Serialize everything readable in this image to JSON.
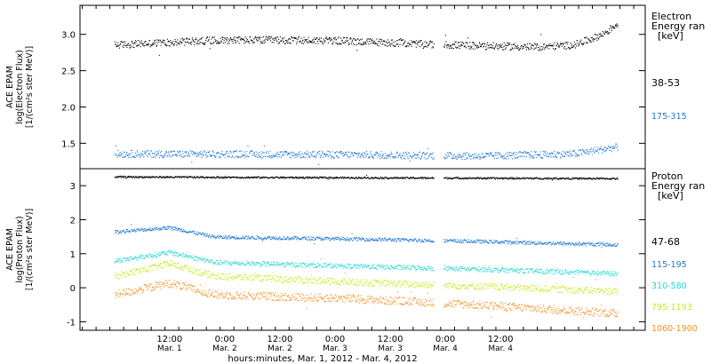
{
  "chart_data": [
    {
      "type": "scatter",
      "panel": "electron",
      "ylabel": [
        "ACE EPAM",
        "log(Electron Flux)",
        "[1/(cm²s ster MeV)]"
      ],
      "ylim": [
        1.15,
        3.4
      ],
      "yticks": [
        1.5,
        2.0,
        2.5,
        3.0
      ],
      "ytick_labels": [
        "1.5",
        "2.0",
        "2.5",
        "3.0"
      ],
      "legend_title": [
        "Electron",
        "Energy ran",
        "[keV]"
      ],
      "series": [
        {
          "name": "38-53",
          "color": "#000000",
          "level": [
            [
              0,
              2.86
            ],
            [
              24,
              2.93
            ],
            [
              48,
              2.92
            ],
            [
              72,
              2.86
            ],
            [
              92,
              2.83
            ],
            [
              100,
              2.86
            ],
            [
              106,
              3.0
            ],
            [
              110,
              3.18
            ]
          ],
          "jitter": 0.05
        },
        {
          "name": "175-315",
          "color": "#1e78d2",
          "level": [
            [
              0,
              1.36
            ],
            [
              48,
              1.35
            ],
            [
              80,
              1.33
            ],
            [
              100,
              1.36
            ],
            [
              110,
              1.46
            ]
          ],
          "jitter": 0.05
        }
      ]
    },
    {
      "type": "scatter",
      "panel": "proton",
      "ylabel": [
        "ACE EPAM",
        "log(Proton Flux)",
        "[1/(cm²s ster MeV)]"
      ],
      "ylim": [
        -1.25,
        3.5
      ],
      "yticks": [
        -1,
        0,
        1,
        2,
        3
      ],
      "ytick_labels": [
        "-1",
        "0",
        "1",
        "2",
        "3"
      ],
      "legend_title": [
        "Proton",
        "Energy ran",
        "[keV]"
      ],
      "series": [
        {
          "name": "47-68",
          "color": "#000000",
          "level": [
            [
              0,
              3.27
            ],
            [
              110,
              3.22
            ]
          ],
          "jitter": 0.025
        },
        {
          "name": "115-195",
          "color": "#1e78d2",
          "level": [
            [
              0,
              1.65
            ],
            [
              12,
              1.78
            ],
            [
              22,
              1.5
            ],
            [
              50,
              1.45
            ],
            [
              80,
              1.37
            ],
            [
              110,
              1.27
            ]
          ],
          "jitter": 0.05
        },
        {
          "name": "310-580",
          "color": "#22d8d0",
          "level": [
            [
              0,
              0.8
            ],
            [
              12,
              1.05
            ],
            [
              22,
              0.75
            ],
            [
              50,
              0.65
            ],
            [
              80,
              0.55
            ],
            [
              110,
              0.42
            ]
          ],
          "jitter": 0.07
        },
        {
          "name": "795-1193",
          "color": "#c8e81e",
          "level": [
            [
              0,
              0.35
            ],
            [
              12,
              0.72
            ],
            [
              22,
              0.35
            ],
            [
              50,
              0.18
            ],
            [
              80,
              0.05
            ],
            [
              110,
              -0.1
            ]
          ],
          "jitter": 0.1
        },
        {
          "name": "1060-1900",
          "color": "#f5901e",
          "level": [
            [
              0,
              -0.2
            ],
            [
              12,
              0.15
            ],
            [
              22,
              -0.2
            ],
            [
              50,
              -0.3
            ],
            [
              80,
              -0.5
            ],
            [
              110,
              -0.75
            ]
          ],
          "jitter": 0.12
        }
      ]
    }
  ],
  "xaxis": {
    "range_hours": [
      -7.5,
      115.5
    ],
    "data_end_hours": 109.5,
    "gap_hours": [
      69.5,
      71.5
    ],
    "ticks": [
      {
        "hours": 12,
        "time": "12:00",
        "date": "Mar. 1"
      },
      {
        "hours": 24,
        "time": "0:00",
        "date": "Mar. 2"
      },
      {
        "hours": 36,
        "time": "12:00",
        "date": "Mar. 2"
      },
      {
        "hours": 48,
        "time": "0:00",
        "date": "Mar. 3"
      },
      {
        "hours": 60,
        "time": "12:00",
        "date": "Mar. 3"
      },
      {
        "hours": 72,
        "time": "0:00",
        "date": "Mar. 4"
      },
      {
        "hours": 84,
        "time": "12:00",
        "date": "Mar. 4"
      }
    ],
    "label": "hours:minutes, Mar.  1, 2012 - Mar.  4, 2012"
  }
}
